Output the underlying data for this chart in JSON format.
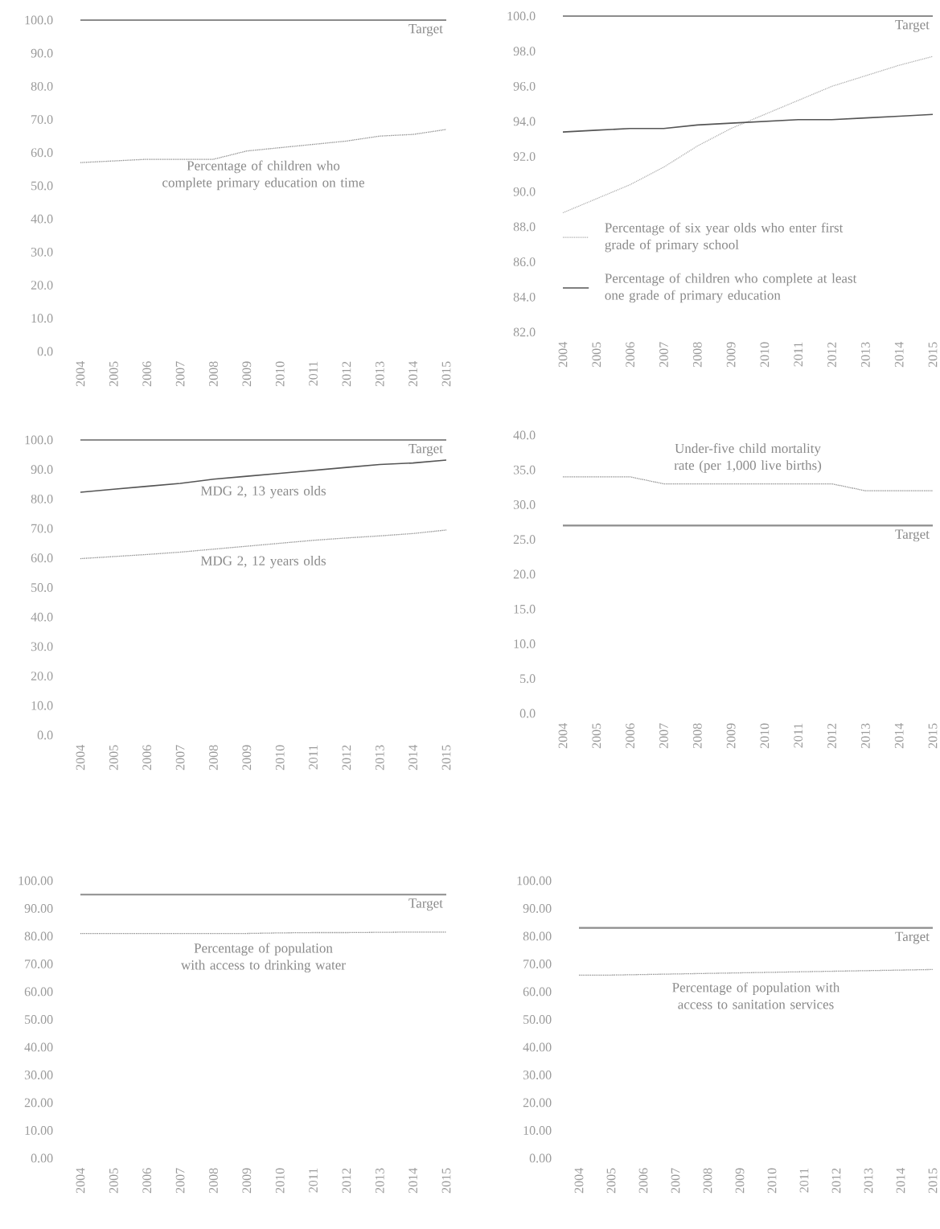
{
  "chart_data": [
    {
      "type": "line",
      "categories": [
        "2004",
        "2005",
        "2006",
        "2007",
        "2008",
        "2009",
        "2010",
        "2011",
        "2012",
        "2013",
        "2014",
        "2015"
      ],
      "series": [
        {
          "name": "Percentage of children who complete primary education on time",
          "color": "#8a8a8a",
          "line_style": "dotted",
          "values": [
            57,
            57.5,
            58,
            58,
            58,
            60.5,
            61.5,
            62.5,
            63.5,
            65,
            65.5,
            67
          ]
        }
      ],
      "ylim": [
        0,
        100
      ],
      "yticks": [
        {
          "value": 0,
          "label": "0.0"
        },
        {
          "value": 10,
          "label": "10.0"
        },
        {
          "value": 20,
          "label": "20.0"
        },
        {
          "value": 30,
          "label": "30.0"
        },
        {
          "value": 40,
          "label": "40.0"
        },
        {
          "value": 50,
          "label": "50.0"
        },
        {
          "value": 60,
          "label": "60.0"
        },
        {
          "value": 70,
          "label": "70.0"
        },
        {
          "value": 80,
          "label": "80.0"
        },
        {
          "value": 90,
          "label": "90.0"
        },
        {
          "value": 100,
          "label": "100.0"
        }
      ],
      "ref_lines": [
        {
          "axis": "y",
          "value": 100,
          "label": "Target",
          "color": "#8c8c8c"
        }
      ],
      "legend": false
    },
    {
      "type": "line",
      "categories": [
        "2004",
        "2005",
        "2006",
        "2007",
        "2008",
        "2009",
        "2010",
        "2011",
        "2012",
        "2013",
        "2014",
        "2015"
      ],
      "series": [
        {
          "name": "Percentage of six year olds who enter first grade of primary school",
          "color": "#b0b0b0",
          "line_style": "dotted",
          "values": [
            88.8,
            89.6,
            90.4,
            91.4,
            92.6,
            93.6,
            94.4,
            95.2,
            96.0,
            96.6,
            97.2,
            97.7
          ]
        },
        {
          "name": "Percentage of children who complete at least one grade of primary education",
          "color": "#555555",
          "line_style": "solid",
          "values": [
            93.4,
            93.5,
            93.6,
            93.6,
            93.8,
            93.9,
            94.0,
            94.1,
            94.1,
            94.2,
            94.3,
            94.4
          ]
        }
      ],
      "ylim": [
        82,
        100
      ],
      "yticks": [
        {
          "value": 82,
          "label": "82.0"
        },
        {
          "value": 84,
          "label": "84.0"
        },
        {
          "value": 86,
          "label": "86.0"
        },
        {
          "value": 88,
          "label": "88.0"
        },
        {
          "value": 90,
          "label": "90.0"
        },
        {
          "value": 92,
          "label": "92.0"
        },
        {
          "value": 94,
          "label": "94.0"
        },
        {
          "value": 96,
          "label": "96.0"
        },
        {
          "value": 98,
          "label": "98.0"
        },
        {
          "value": 100,
          "label": "100.0"
        }
      ],
      "ref_lines": [
        {
          "axis": "y",
          "value": 100,
          "label": "Target",
          "color": "#8c8c8c"
        }
      ],
      "legend": "bottom left"
    },
    {
      "type": "line",
      "categories": [
        "2004",
        "2005",
        "2006",
        "2007",
        "2008",
        "2009",
        "2010",
        "2011",
        "2012",
        "2013",
        "2014",
        "2015"
      ],
      "series": [
        {
          "name": "MDG 2, 13 years olds",
          "color": "#555555",
          "line_style": "solid",
          "values": [
            82.3,
            83.3,
            84.3,
            85.3,
            86.7,
            87.7,
            88.7,
            89.7,
            90.7,
            91.7,
            92.2,
            93.2
          ]
        },
        {
          "name": "MDG 2, 12 years olds",
          "color": "#8a8a8a",
          "line_style": "dotted",
          "values": [
            59.8,
            60.5,
            61.2,
            62,
            63,
            64,
            65,
            66,
            66.8,
            67.5,
            68.3,
            69.5
          ]
        }
      ],
      "ylim": [
        0,
        100
      ],
      "yticks": [
        {
          "value": 0,
          "label": "0.0"
        },
        {
          "value": 10,
          "label": "10.0"
        },
        {
          "value": 20,
          "label": "20.0"
        },
        {
          "value": 30,
          "label": "30.0"
        },
        {
          "value": 40,
          "label": "40.0"
        },
        {
          "value": 50,
          "label": "50.0"
        },
        {
          "value": 60,
          "label": "60.0"
        },
        {
          "value": 70,
          "label": "70.0"
        },
        {
          "value": 80,
          "label": "80.0"
        },
        {
          "value": 90,
          "label": "90.0"
        },
        {
          "value": 100,
          "label": "100.0"
        }
      ],
      "ref_lines": [
        {
          "axis": "y",
          "value": 100,
          "label": "Target",
          "color": "#8c8c8c"
        }
      ],
      "legend": false
    },
    {
      "type": "line",
      "categories": [
        "2004",
        "2005",
        "2006",
        "2007",
        "2008",
        "2009",
        "2010",
        "2011",
        "2012",
        "2013",
        "2014",
        "2015"
      ],
      "series": [
        {
          "name": "Under-five child mortality rate (per 1,000 live births)",
          "color": "#8a8a8a",
          "line_style": "dotted",
          "values": [
            34,
            34,
            34,
            33,
            33,
            33,
            33,
            33,
            33,
            32,
            32,
            32
          ]
        }
      ],
      "ylim": [
        0,
        40
      ],
      "yticks": [
        {
          "value": 0,
          "label": "0.0"
        },
        {
          "value": 5,
          "label": "5.0"
        },
        {
          "value": 10,
          "label": "10.0"
        },
        {
          "value": 15,
          "label": "15.0"
        },
        {
          "value": 20,
          "label": "20.0"
        },
        {
          "value": 25,
          "label": "25.0"
        },
        {
          "value": 30,
          "label": "30.0"
        },
        {
          "value": 35,
          "label": "35.0"
        },
        {
          "value": 40,
          "label": "40.0"
        }
      ],
      "ref_lines": [
        {
          "axis": "y",
          "value": 27,
          "label": "Target",
          "color": "#8c8c8c"
        }
      ],
      "legend": false
    },
    {
      "type": "line",
      "categories": [
        "2004",
        "2005",
        "2006",
        "2007",
        "2008",
        "2009",
        "2010",
        "2011",
        "2012",
        "2013",
        "2014",
        "2015"
      ],
      "series": [
        {
          "name": "Percentage of population with access to drinking water",
          "color": "#8a8a8a",
          "line_style": "dotted",
          "values": [
            81,
            81,
            81,
            81,
            81,
            81,
            81.2,
            81.3,
            81.3,
            81.4,
            81.5,
            81.5
          ]
        }
      ],
      "ylim": [
        0,
        100
      ],
      "yticks": [
        {
          "value": 0,
          "label": "0.00"
        },
        {
          "value": 10,
          "label": "10.00"
        },
        {
          "value": 20,
          "label": "20.00"
        },
        {
          "value": 30,
          "label": "30.00"
        },
        {
          "value": 40,
          "label": "40.00"
        },
        {
          "value": 50,
          "label": "50.00"
        },
        {
          "value": 60,
          "label": "60.00"
        },
        {
          "value": 70,
          "label": "70.00"
        },
        {
          "value": 80,
          "label": "80.00"
        },
        {
          "value": 90,
          "label": "90.00"
        },
        {
          "value": 100,
          "label": "100.00"
        }
      ],
      "ref_lines": [
        {
          "axis": "y",
          "value": 95,
          "label": "Target",
          "color": "#8c8c8c"
        }
      ],
      "legend": false
    },
    {
      "type": "line",
      "categories": [
        "2004",
        "2005",
        "2006",
        "2007",
        "2008",
        "2009",
        "2010",
        "2011",
        "2012",
        "2013",
        "2014",
        "2015"
      ],
      "series": [
        {
          "name": "Percentage of population with access to sanitation services",
          "color": "#8a8a8a",
          "line_style": "dotted",
          "values": [
            66,
            66,
            66.2,
            66.4,
            66.6,
            66.8,
            67,
            67.2,
            67.4,
            67.6,
            67.8,
            68
          ]
        }
      ],
      "ylim": [
        0,
        100
      ],
      "yticks": [
        {
          "value": 0,
          "label": "0.00"
        },
        {
          "value": 10,
          "label": "10.00"
        },
        {
          "value": 20,
          "label": "20.00"
        },
        {
          "value": 30,
          "label": "30.00"
        },
        {
          "value": 40,
          "label": "40.00"
        },
        {
          "value": 50,
          "label": "50.00"
        },
        {
          "value": 60,
          "label": "60.00"
        },
        {
          "value": 70,
          "label": "70.00"
        },
        {
          "value": 80,
          "label": "80.00"
        },
        {
          "value": 90,
          "label": "90.00"
        },
        {
          "value": 100,
          "label": "100.00"
        }
      ],
      "ref_lines": [
        {
          "axis": "y",
          "value": 83,
          "label": "Target",
          "color": "#8c8c8c"
        }
      ],
      "legend": false
    }
  ]
}
